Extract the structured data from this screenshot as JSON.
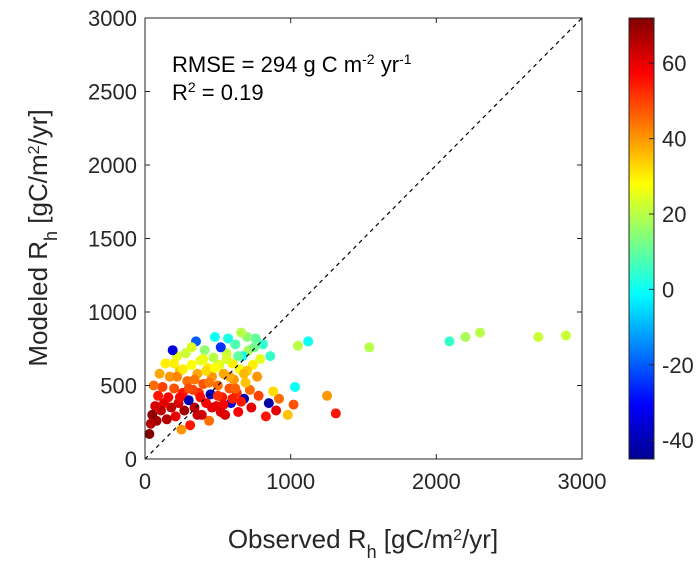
{
  "chart_data": {
    "type": "scatter",
    "title": "",
    "xlabel": {
      "main": "Observed R",
      "sub": "h",
      "pre_sup": " [gC/m",
      "sup": "2",
      "post_sup": "/yr]"
    },
    "ylabel": {
      "main": "Modeled R",
      "sub": "h",
      "pre_sup": " [gC/m",
      "sup": "2",
      "post_sup": "/yr]"
    },
    "xlim": [
      0,
      3000
    ],
    "ylim": [
      0,
      3000
    ],
    "xticks": [
      "0",
      "1000",
      "2000",
      "3000"
    ],
    "xtick_values": [
      0,
      1000,
      2000,
      3000
    ],
    "yticks": [
      "0",
      "500",
      "1000",
      "1500",
      "2000",
      "2500",
      "3000"
    ],
    "ytick_values": [
      0,
      500,
      1000,
      1500,
      2000,
      2500,
      3000
    ],
    "grid": false,
    "reference_line": "1:1 dashed",
    "annotations": {
      "rmse": {
        "pre": "RMSE = 294 g C m",
        "sup1": "-2",
        "mid": " yr",
        "sup2": "-1"
      },
      "r2": {
        "pre": "R",
        "sup": "2",
        "post": " = 0.19"
      }
    },
    "colorbar": {
      "colormap": "jet",
      "range": [
        -45,
        72
      ],
      "ticks": [
        "60",
        "40",
        "20",
        "0",
        "-20",
        "-40"
      ],
      "tick_values": [
        60,
        40,
        20,
        0,
        -20,
        -40
      ]
    },
    "points": [
      {
        "x": 1540,
        "y": 760,
        "c": 20
      },
      {
        "x": 2090,
        "y": 800,
        "c": 5
      },
      {
        "x": 2200,
        "y": 830,
        "c": 18
      },
      {
        "x": 2300,
        "y": 860,
        "c": 20
      },
      {
        "x": 2700,
        "y": 830,
        "c": 22
      },
      {
        "x": 2890,
        "y": 840,
        "c": 22
      },
      {
        "x": 1310,
        "y": 310,
        "c": 55
      },
      {
        "x": 1250,
        "y": 430,
        "c": 40
      },
      {
        "x": 1120,
        "y": 800,
        "c": 0
      },
      {
        "x": 1050,
        "y": 770,
        "c": 20
      },
      {
        "x": 1030,
        "y": 490,
        "c": 0
      },
      {
        "x": 1020,
        "y": 370,
        "c": 48
      },
      {
        "x": 980,
        "y": 300,
        "c": 35
      },
      {
        "x": 920,
        "y": 410,
        "c": 45
      },
      {
        "x": 900,
        "y": 330,
        "c": 60
      },
      {
        "x": 880,
        "y": 460,
        "c": 32
      },
      {
        "x": 850,
        "y": 380,
        "c": -42
      },
      {
        "x": 830,
        "y": 290,
        "c": 55
      },
      {
        "x": 810,
        "y": 780,
        "c": 5
      },
      {
        "x": 790,
        "y": 680,
        "c": 25
      },
      {
        "x": 780,
        "y": 430,
        "c": 50
      },
      {
        "x": 770,
        "y": 560,
        "c": 40
      },
      {
        "x": 760,
        "y": 820,
        "c": 10
      },
      {
        "x": 740,
        "y": 640,
        "c": 30
      },
      {
        "x": 730,
        "y": 350,
        "c": 60
      },
      {
        "x": 720,
        "y": 470,
        "c": 45
      },
      {
        "x": 710,
        "y": 740,
        "c": 18
      },
      {
        "x": 700,
        "y": 830,
        "c": 15
      },
      {
        "x": 690,
        "y": 520,
        "c": 35
      },
      {
        "x": 680,
        "y": 410,
        "c": -40
      },
      {
        "x": 670,
        "y": 700,
        "c": 0
      },
      {
        "x": 660,
        "y": 860,
        "c": 20
      },
      {
        "x": 650,
        "y": 610,
        "c": 28
      },
      {
        "x": 640,
        "y": 320,
        "c": 58
      },
      {
        "x": 630,
        "y": 450,
        "c": 52
      },
      {
        "x": 620,
        "y": 780,
        "c": 8
      },
      {
        "x": 610,
        "y": 540,
        "c": 40
      },
      {
        "x": 600,
        "y": 650,
        "c": 30
      },
      {
        "x": 590,
        "y": 380,
        "c": -35
      },
      {
        "x": 580,
        "y": 480,
        "c": 48
      },
      {
        "x": 570,
        "y": 820,
        "c": 2
      },
      {
        "x": 560,
        "y": 720,
        "c": 22
      },
      {
        "x": 550,
        "y": 300,
        "c": 62
      },
      {
        "x": 540,
        "y": 580,
        "c": 38
      },
      {
        "x": 530,
        "y": 420,
        "c": 55
      },
      {
        "x": 520,
        "y": 760,
        "c": -25
      },
      {
        "x": 510,
        "y": 640,
        "c": 25
      },
      {
        "x": 500,
        "y": 500,
        "c": 45
      },
      {
        "x": 490,
        "y": 360,
        "c": 60
      },
      {
        "x": 480,
        "y": 830,
        "c": 0
      },
      {
        "x": 470,
        "y": 690,
        "c": 20
      },
      {
        "x": 460,
        "y": 560,
        "c": 40
      },
      {
        "x": 450,
        "y": 440,
        "c": -38
      },
      {
        "x": 440,
        "y": 260,
        "c": 45
      },
      {
        "x": 430,
        "y": 620,
        "c": 30
      },
      {
        "x": 420,
        "y": 380,
        "c": 58
      },
      {
        "x": 410,
        "y": 740,
        "c": 15
      },
      {
        "x": 400,
        "y": 510,
        "c": 48
      },
      {
        "x": 390,
        "y": 300,
        "c": 62
      },
      {
        "x": 380,
        "y": 670,
        "c": 25
      },
      {
        "x": 370,
        "y": 450,
        "c": 52
      },
      {
        "x": 360,
        "y": 580,
        "c": 38
      },
      {
        "x": 350,
        "y": 800,
        "c": -20
      },
      {
        "x": 340,
        "y": 350,
        "c": 65
      },
      {
        "x": 330,
        "y": 470,
        "c": 50
      },
      {
        "x": 320,
        "y": 640,
        "c": 28
      },
      {
        "x": 310,
        "y": 230,
        "c": 55
      },
      {
        "x": 300,
        "y": 400,
        "c": -40
      },
      {
        "x": 290,
        "y": 530,
        "c": 45
      },
      {
        "x": 280,
        "y": 720,
        "c": 22
      },
      {
        "x": 270,
        "y": 330,
        "c": 68
      },
      {
        "x": 260,
        "y": 450,
        "c": 55
      },
      {
        "x": 250,
        "y": 200,
        "c": 40
      },
      {
        "x": 240,
        "y": 600,
        "c": 35
      },
      {
        "x": 230,
        "y": 380,
        "c": 62
      },
      {
        "x": 220,
        "y": 700,
        "c": 25
      },
      {
        "x": 210,
        "y": 290,
        "c": 60
      },
      {
        "x": 200,
        "y": 480,
        "c": 48
      },
      {
        "x": 190,
        "y": 740,
        "c": -35
      },
      {
        "x": 180,
        "y": 350,
        "c": 65
      },
      {
        "x": 170,
        "y": 560,
        "c": 40
      },
      {
        "x": 160,
        "y": 420,
        "c": 58
      },
      {
        "x": 150,
        "y": 270,
        "c": 66
      },
      {
        "x": 140,
        "y": 650,
        "c": 30
      },
      {
        "x": 130,
        "y": 380,
        "c": 60
      },
      {
        "x": 120,
        "y": 490,
        "c": 50
      },
      {
        "x": 110,
        "y": 330,
        "c": 65
      },
      {
        "x": 100,
        "y": 580,
        "c": 38
      },
      {
        "x": 90,
        "y": 430,
        "c": 55
      },
      {
        "x": 80,
        "y": 260,
        "c": 68
      },
      {
        "x": 70,
        "y": 360,
        "c": 62
      },
      {
        "x": 60,
        "y": 500,
        "c": 45
      },
      {
        "x": 50,
        "y": 300,
        "c": 70
      },
      {
        "x": 40,
        "y": 240,
        "c": 66
      },
      {
        "x": 30,
        "y": 170,
        "c": 72
      },
      {
        "x": 220,
        "y": 560,
        "c": 42
      },
      {
        "x": 260,
        "y": 610,
        "c": 30
      },
      {
        "x": 340,
        "y": 540,
        "c": 44
      },
      {
        "x": 380,
        "y": 420,
        "c": 56
      },
      {
        "x": 420,
        "y": 600,
        "c": 32
      },
      {
        "x": 460,
        "y": 350,
        "c": 60
      },
      {
        "x": 500,
        "y": 430,
        "c": 52
      },
      {
        "x": 540,
        "y": 370,
        "c": 58
      },
      {
        "x": 580,
        "y": 560,
        "c": 38
      },
      {
        "x": 620,
        "y": 480,
        "c": 46
      },
      {
        "x": 660,
        "y": 390,
        "c": 55
      },
      {
        "x": 700,
        "y": 600,
        "c": 34
      },
      {
        "x": 240,
        "y": 420,
        "c": 57
      },
      {
        "x": 300,
        "y": 480,
        "c": 49
      },
      {
        "x": 360,
        "y": 300,
        "c": 64
      },
      {
        "x": 440,
        "y": 520,
        "c": 44
      },
      {
        "x": 480,
        "y": 620,
        "c": 28
      },
      {
        "x": 520,
        "y": 320,
        "c": 61
      },
      {
        "x": 560,
        "y": 680,
        "c": 24
      },
      {
        "x": 600,
        "y": 410,
        "c": 54
      },
      {
        "x": 640,
        "y": 700,
        "c": 10
      },
      {
        "x": 680,
        "y": 580,
        "c": 36
      },
      {
        "x": 200,
        "y": 650,
        "c": 30
      },
      {
        "x": 320,
        "y": 760,
        "c": 24
      },
      {
        "x": 400,
        "y": 680,
        "c": 26
      },
      {
        "x": 750,
        "y": 760,
        "c": 12
      },
      {
        "x": 860,
        "y": 700,
        "c": 5
      }
    ]
  }
}
